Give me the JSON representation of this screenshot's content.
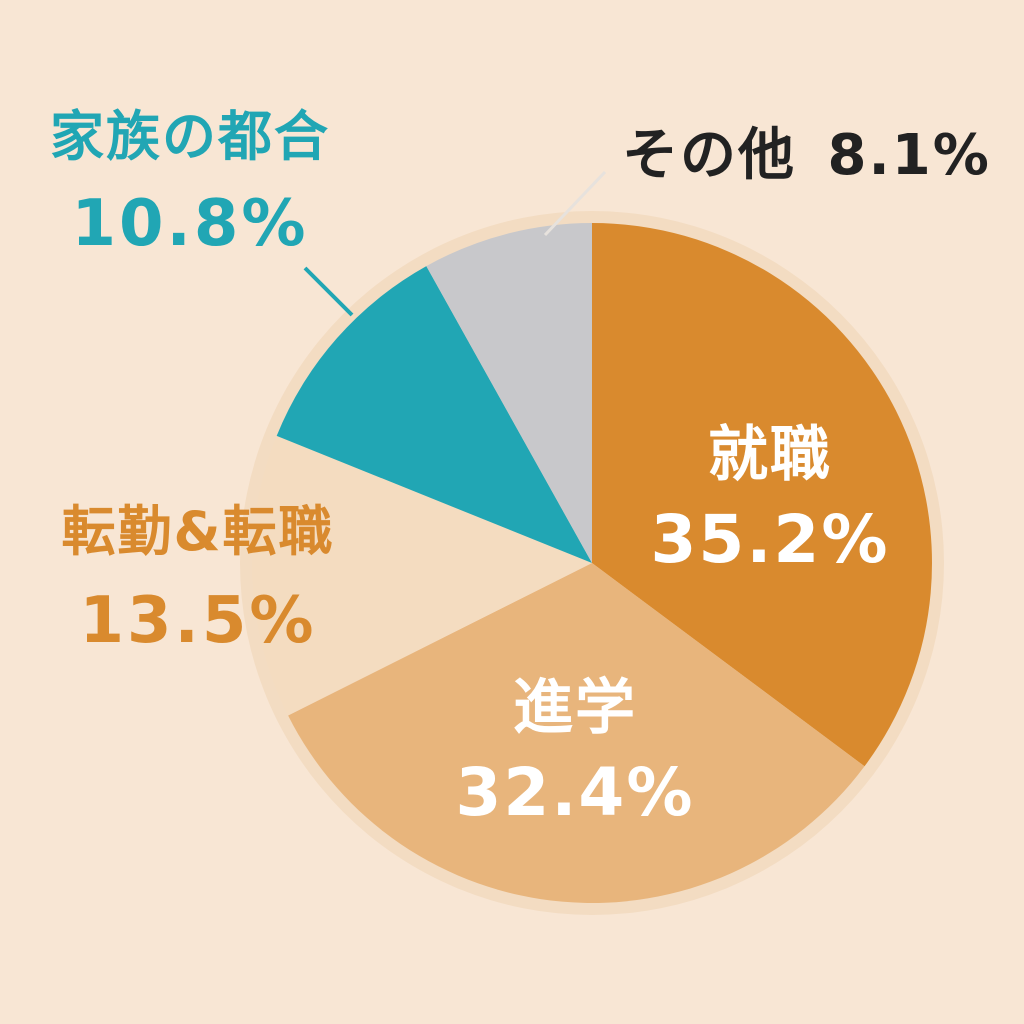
{
  "chart_data": {
    "type": "pie",
    "start_angle_deg": 0,
    "direction": "clockwise",
    "slices": [
      {
        "label": "就職",
        "percent_label": "35.2%",
        "value": 35.2,
        "color": "#d98a2e",
        "label_color": "#ffffff"
      },
      {
        "label": "進学",
        "percent_label": "32.4%",
        "value": 32.4,
        "color": "#e8b57c",
        "label_color": "#ffffff"
      },
      {
        "label": "転勤&転職",
        "percent_label": "13.5%",
        "value": 13.5,
        "color": "#f4dcc0",
        "label_color": "#d98a2e"
      },
      {
        "label": "家族の都合",
        "percent_label": "10.8%",
        "value": 10.8,
        "color": "#21a6b4",
        "label_color": "#21a6b4"
      },
      {
        "label": "その他",
        "percent_label": "8.1%",
        "value": 8.1,
        "color": "#c8c8cb",
        "label_color": "#222222"
      }
    ]
  }
}
